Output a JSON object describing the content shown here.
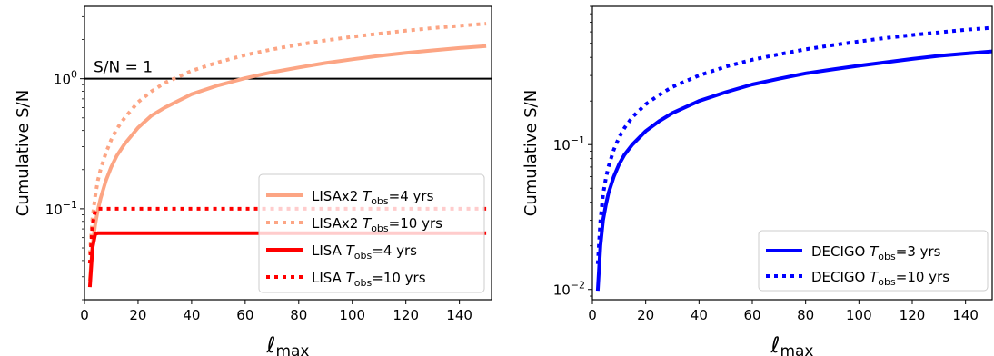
{
  "chart_data": [
    {
      "type": "line",
      "xlabel": "ℓmax",
      "ylabel": "Cumulative S/N",
      "xlim": [
        0,
        152
      ],
      "ylim": [
        0.02,
        3.6
      ],
      "y_scale": "log",
      "x_ticks": [
        0,
        20,
        40,
        60,
        80,
        100,
        120,
        140
      ],
      "y_ticks": [
        {
          "value": 1.0,
          "base": "10",
          "exp": "0"
        },
        {
          "value": 0.1,
          "base": "10",
          "exp": "−1"
        }
      ],
      "grid": false,
      "legend_position": "lower-right",
      "annotations": [
        {
          "text": "S/N = 1",
          "y": 1.0,
          "style": "horizontal-line",
          "color": "#000000"
        }
      ],
      "series": [
        {
          "label_main": "LISAx2 ",
          "label_var": "T",
          "label_sub": "obs",
          "label_tail": "=4 yrs",
          "color": "#FCA584",
          "style": "solid",
          "x": [
            2,
            3,
            4,
            5,
            6,
            8,
            10,
            12,
            15,
            20,
            25,
            30,
            40,
            50,
            60,
            70,
            80,
            90,
            100,
            110,
            120,
            130,
            140,
            150
          ],
          "values": [
            0.028,
            0.052,
            0.076,
            0.098,
            0.12,
            0.165,
            0.21,
            0.255,
            0.315,
            0.42,
            0.52,
            0.6,
            0.76,
            0.89,
            1.01,
            1.12,
            1.22,
            1.32,
            1.41,
            1.5,
            1.58,
            1.65,
            1.72,
            1.78
          ]
        },
        {
          "label_main": "LISAx2 ",
          "label_var": "T",
          "label_sub": "obs",
          "label_tail": "=10 yrs",
          "color": "#FCA584",
          "style": "dotted",
          "x": [
            2,
            3,
            4,
            5,
            6,
            8,
            10,
            12,
            15,
            20,
            25,
            30,
            40,
            50,
            60,
            70,
            80,
            90,
            100,
            110,
            120,
            130,
            140,
            150
          ],
          "values": [
            0.045,
            0.085,
            0.125,
            0.165,
            0.2,
            0.27,
            0.34,
            0.41,
            0.5,
            0.66,
            0.8,
            0.93,
            1.15,
            1.34,
            1.52,
            1.68,
            1.83,
            1.97,
            2.1,
            2.22,
            2.34,
            2.45,
            2.55,
            2.65
          ]
        },
        {
          "label_main": "LISA ",
          "label_var": "T",
          "label_sub": "obs",
          "label_tail": "=4 yrs",
          "color": "#FF0000",
          "style": "solid",
          "x": [
            2,
            3,
            4,
            5,
            6,
            150
          ],
          "values": [
            0.025,
            0.05,
            0.064,
            0.065,
            0.065,
            0.065
          ]
        },
        {
          "label_main": "LISA ",
          "label_var": "T",
          "label_sub": "obs",
          "label_tail": "=10 yrs",
          "color": "#FF0000",
          "style": "dotted",
          "x": [
            2,
            3,
            4,
            5,
            6,
            150
          ],
          "values": [
            0.038,
            0.075,
            0.097,
            0.1,
            0.1,
            0.1
          ]
        }
      ]
    },
    {
      "type": "line",
      "xlabel": "ℓmax",
      "ylabel": "Cumulative S/N",
      "xlim": [
        0,
        150
      ],
      "ylim": [
        0.0085,
        0.9
      ],
      "y_scale": "log",
      "x_ticks": [
        0,
        20,
        40,
        60,
        80,
        100,
        120,
        140
      ],
      "y_ticks": [
        {
          "value": 0.1,
          "base": "10",
          "exp": "−1"
        },
        {
          "value": 0.01,
          "base": "10",
          "exp": "−2"
        }
      ],
      "grid": false,
      "legend_position": "lower-right",
      "series": [
        {
          "label_main": "DECIGO ",
          "label_var": "T",
          "label_sub": "obs",
          "label_tail": "=3 yrs",
          "color": "#0000FF",
          "style": "solid",
          "x": [
            2,
            3,
            4,
            5,
            6,
            8,
            10,
            12,
            15,
            20,
            25,
            30,
            40,
            50,
            60,
            70,
            80,
            90,
            100,
            110,
            120,
            130,
            140,
            150
          ],
          "values": [
            0.0098,
            0.02,
            0.03,
            0.038,
            0.046,
            0.06,
            0.073,
            0.085,
            0.1,
            0.124,
            0.145,
            0.165,
            0.2,
            0.23,
            0.26,
            0.285,
            0.31,
            0.33,
            0.35,
            0.37,
            0.39,
            0.41,
            0.425,
            0.44
          ]
        },
        {
          "label_main": "DECIGO ",
          "label_var": "T",
          "label_sub": "obs",
          "label_tail": "=10 yrs",
          "color": "#0000FF",
          "style": "dotted",
          "x": [
            2,
            3,
            4,
            5,
            6,
            8,
            10,
            12,
            15,
            20,
            25,
            30,
            40,
            50,
            60,
            70,
            80,
            90,
            100,
            110,
            120,
            130,
            140,
            150
          ],
          "values": [
            0.015,
            0.03,
            0.045,
            0.058,
            0.07,
            0.092,
            0.112,
            0.13,
            0.155,
            0.19,
            0.22,
            0.25,
            0.3,
            0.345,
            0.385,
            0.42,
            0.455,
            0.485,
            0.515,
            0.545,
            0.57,
            0.595,
            0.62,
            0.64
          ]
        }
      ]
    }
  ]
}
